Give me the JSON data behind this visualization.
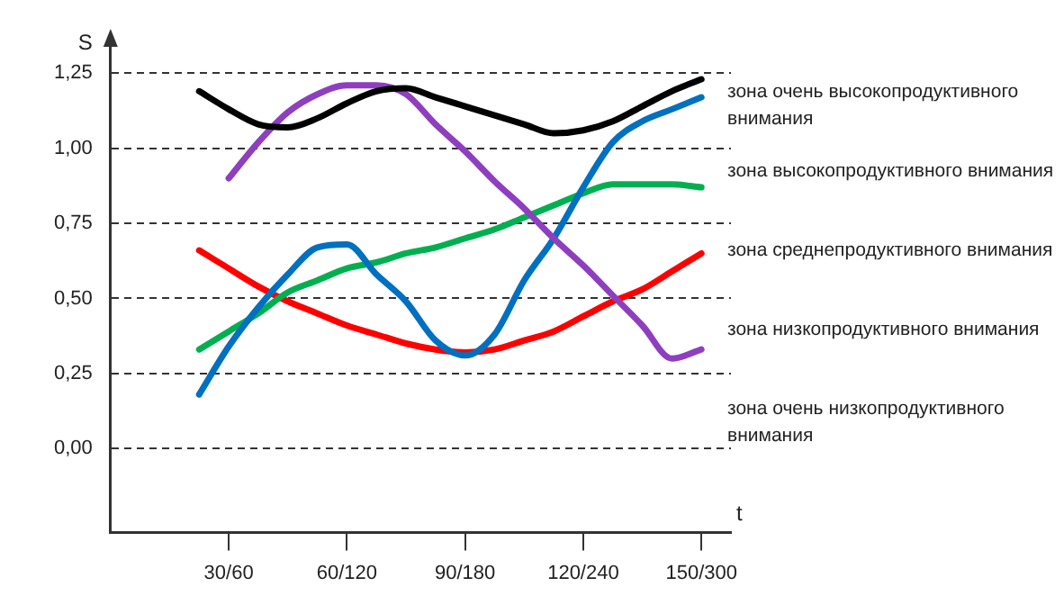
{
  "chart_data": {
    "type": "line",
    "xlabel": "t",
    "ylabel": "S",
    "categories": [
      null,
      null,
      null,
      null,
      "30/60",
      null,
      null,
      null,
      "60/120",
      null,
      null,
      null,
      "90/180",
      null,
      null,
      null,
      "120/240",
      null,
      null,
      null,
      "150/300",
      null
    ],
    "ylim": [
      -0.28,
      1.35
    ],
    "yticks": [
      {
        "value": 0,
        "label": "0,00"
      },
      {
        "value": 0.25,
        "label": "0,25"
      },
      {
        "value": 0.5,
        "label": "0,50"
      },
      {
        "value": 0.75,
        "label": "0,75"
      },
      {
        "value": 1,
        "label": "1,00"
      },
      {
        "value": 1.25,
        "label": "1,25"
      }
    ],
    "grid": "y",
    "legend": false,
    "marker": "none",
    "line_style": "solid",
    "series": [
      {
        "color": "#000000",
        "values": [
          null,
          null,
          null,
          1.19,
          1.13,
          1.08,
          1.07,
          1.1,
          1.15,
          1.19,
          1.2,
          1.17,
          1.14,
          1.11,
          1.08,
          1.05,
          1.06,
          1.09,
          1.14,
          1.19,
          1.23,
          null
        ]
      },
      {
        "color": "#8e3fbf",
        "values": [
          null,
          null,
          null,
          null,
          0.9,
          1.02,
          1.12,
          1.18,
          1.21,
          1.21,
          1.18,
          1.08,
          0.99,
          0.89,
          0.8,
          0.7,
          0.61,
          0.51,
          0.41,
          0.3,
          0.33,
          null
        ]
      },
      {
        "color": "#0070c0",
        "values": [
          null,
          null,
          null,
          0.18,
          0.34,
          0.47,
          0.58,
          0.67,
          0.68,
          0.58,
          0.49,
          0.36,
          0.31,
          0.38,
          0.56,
          0.7,
          0.87,
          1.02,
          1.09,
          1.13,
          1.17,
          null
        ]
      },
      {
        "color": "#00b050",
        "values": [
          null,
          null,
          null,
          0.33,
          0.39,
          0.45,
          0.52,
          0.56,
          0.6,
          0.62,
          0.65,
          0.67,
          0.7,
          0.73,
          0.77,
          0.81,
          0.85,
          0.88,
          0.88,
          0.88,
          0.87,
          null
        ]
      },
      {
        "color": "#ff0000",
        "values": [
          null,
          null,
          null,
          0.66,
          0.6,
          0.54,
          0.49,
          0.45,
          0.41,
          0.38,
          0.35,
          0.33,
          0.32,
          0.33,
          0.36,
          0.39,
          0.44,
          0.49,
          0.53,
          0.59,
          0.65,
          null
        ]
      }
    ],
    "annotations": [
      "зона очень высокопродуктивного внимания",
      "зона высокопродуктивного внимания",
      "зона среднепродуктивного внимания",
      "зона низкопродуктивного внимания",
      "зона очень низкопродуктивного внимания"
    ]
  }
}
